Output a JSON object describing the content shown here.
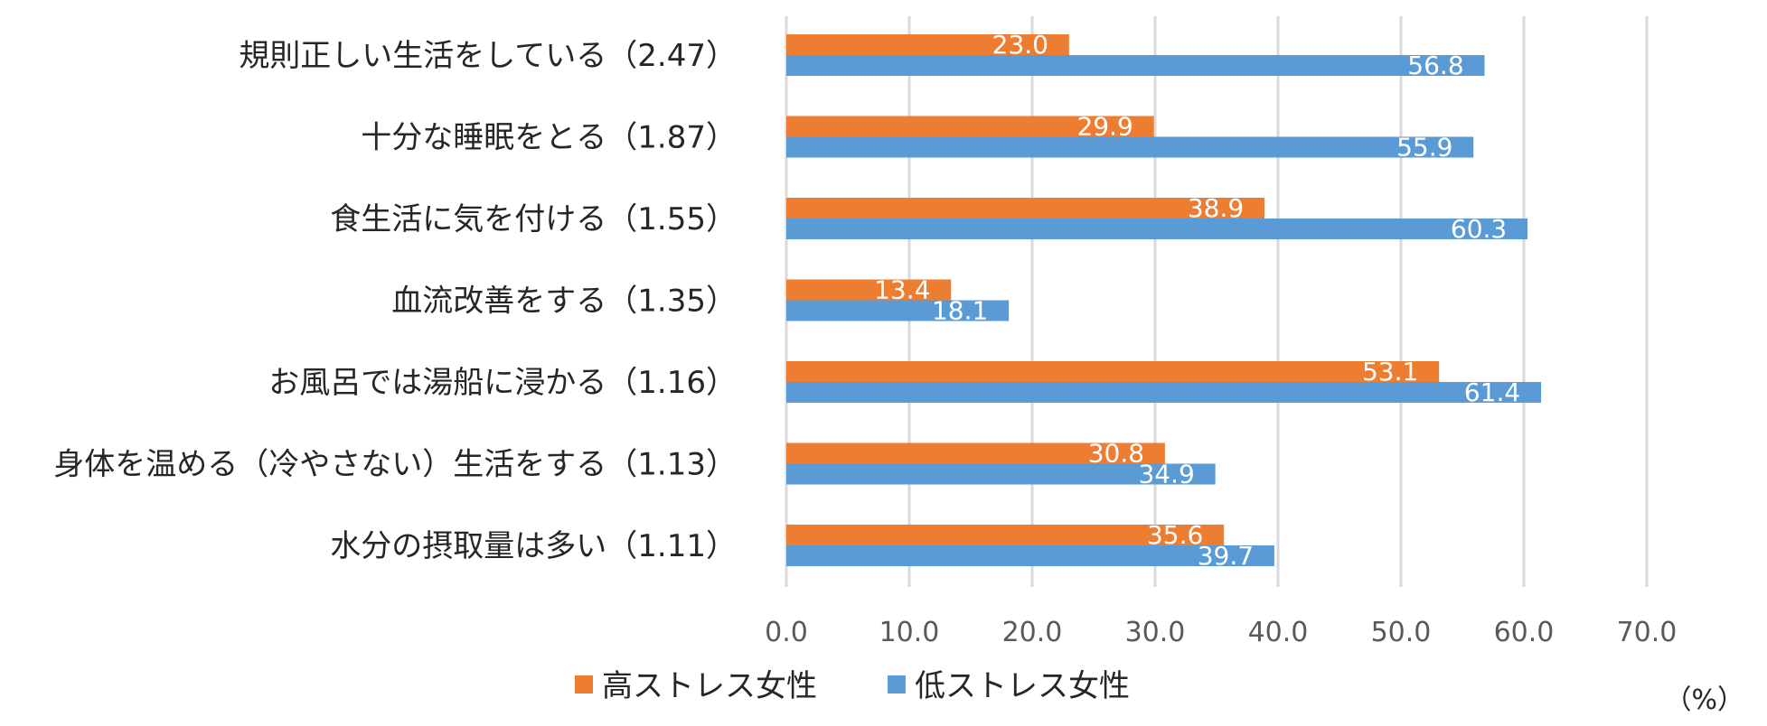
{
  "chart_data": {
    "type": "bar",
    "orientation": "horizontal",
    "categories": [
      "規則正しい生活をしている（2.47）",
      "十分な睡眠をとる（1.87）",
      "食生活に気を付ける（1.55）",
      "血流改善をする（1.35）",
      "お風呂では湯船に浸かる（1.16）",
      "身体を温める（冷やさない）生活をする（1.13）",
      "水分の摂取量は多い（1.11）"
    ],
    "series": [
      {
        "name": "高ストレス女性",
        "color": "#ED7D31",
        "values": [
          23.0,
          29.9,
          38.9,
          13.4,
          53.1,
          30.8,
          35.6
        ]
      },
      {
        "name": "低ストレス女性",
        "color": "#5B9BD5",
        "values": [
          56.8,
          55.9,
          60.3,
          18.1,
          61.4,
          34.9,
          39.7
        ]
      }
    ],
    "xlim": [
      0,
      70
    ],
    "xticks": [
      0,
      10,
      20,
      30,
      40,
      50,
      60,
      70
    ],
    "tick_labels": [
      "0.0",
      "10.0",
      "20.0",
      "30.0",
      "40.0",
      "50.0",
      "60.0",
      "70.0"
    ],
    "unit": "（%）",
    "grid": true,
    "legend_position": "bottom",
    "gridline_color": "#D9D9D9",
    "text_color": "#262626",
    "axis_text_color": "#595959"
  }
}
